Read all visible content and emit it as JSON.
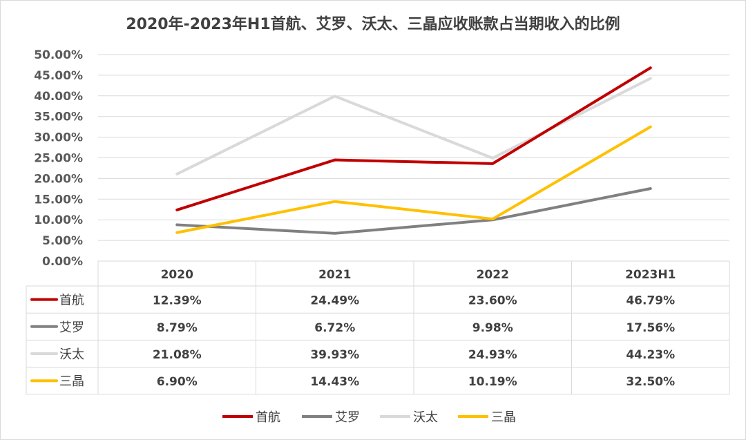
{
  "chart_data": {
    "type": "line",
    "title": "2020年-2023年H1首航、艾罗、沃太、三晶应收账款占当期收入的比例",
    "categories": [
      "2020",
      "2021",
      "2022",
      "2023H1"
    ],
    "y_ticks": [
      "0.00%",
      "5.00%",
      "10.00%",
      "15.00%",
      "20.00%",
      "25.00%",
      "30.00%",
      "35.00%",
      "40.00%",
      "45.00%",
      "50.00%"
    ],
    "ylim": [
      0,
      50
    ],
    "grid": true,
    "legend_position": "bottom",
    "data_table": true,
    "series": [
      {
        "name": "首航",
        "color": "#c00000",
        "values": [
          12.39,
          24.49,
          23.6,
          46.79
        ],
        "labels": [
          "12.39%",
          "24.49%",
          "23.60%",
          "46.79%"
        ]
      },
      {
        "name": "艾罗",
        "color": "#808080",
        "values": [
          8.79,
          6.72,
          9.98,
          17.56
        ],
        "labels": [
          "8.79%",
          "6.72%",
          "9.98%",
          "17.56%"
        ]
      },
      {
        "name": "沃太",
        "color": "#d9d9d9",
        "values": [
          21.08,
          39.93,
          24.93,
          44.23
        ],
        "labels": [
          "21.08%",
          "39.93%",
          "24.93%",
          "44.23%"
        ]
      },
      {
        "name": "三晶",
        "color": "#ffc000",
        "values": [
          6.9,
          14.43,
          10.19,
          32.5
        ],
        "labels": [
          "6.90%",
          "14.43%",
          "10.19%",
          "32.50%"
        ]
      }
    ]
  }
}
